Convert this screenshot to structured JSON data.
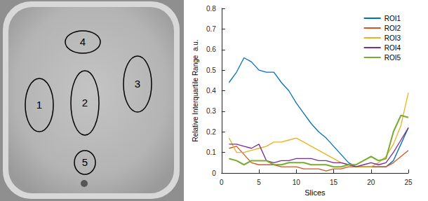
{
  "chart_data": {
    "type": "line",
    "x": [
      1,
      2,
      3,
      4,
      5,
      6,
      7,
      8,
      9,
      10,
      11,
      12,
      13,
      14,
      15,
      16,
      17,
      18,
      19,
      20,
      21,
      22,
      23,
      24,
      25
    ],
    "series": [
      {
        "name": "ROI1",
        "color": "#0072BD",
        "values": [
          0.44,
          0.49,
          0.56,
          0.54,
          0.5,
          0.49,
          0.49,
          0.44,
          0.4,
          0.34,
          0.29,
          0.24,
          0.2,
          0.17,
          0.13,
          0.09,
          0.05,
          0.03,
          0.03,
          0.03,
          0.03,
          0.03,
          0.06,
          0.14,
          0.22
        ]
      },
      {
        "name": "ROI2",
        "color": "#D95319",
        "values": [
          0.12,
          0.13,
          0.09,
          0.05,
          0.04,
          0.04,
          0.04,
          0.03,
          0.03,
          0.03,
          0.02,
          0.02,
          0.02,
          0.01,
          0.02,
          0.02,
          0.03,
          0.03,
          0.03,
          0.03,
          0.03,
          0.03,
          0.05,
          0.08,
          0.11
        ]
      },
      {
        "name": "ROI3",
        "color": "#EDB120",
        "values": [
          0.17,
          0.1,
          0.1,
          0.11,
          0.12,
          0.13,
          0.15,
          0.15,
          0.16,
          0.17,
          0.15,
          0.13,
          0.11,
          0.09,
          0.07,
          0.05,
          0.04,
          0.03,
          0.03,
          0.03,
          0.05,
          0.08,
          0.14,
          0.23,
          0.39
        ]
      },
      {
        "name": "ROI4",
        "color": "#7E2F8E",
        "values": [
          0.14,
          0.14,
          0.13,
          0.12,
          0.14,
          0.06,
          0.05,
          0.06,
          0.06,
          0.07,
          0.07,
          0.07,
          0.06,
          0.06,
          0.05,
          0.05,
          0.04,
          0.03,
          0.04,
          0.05,
          0.04,
          0.05,
          0.1,
          0.16,
          0.22
        ]
      },
      {
        "name": "ROI5",
        "color": "#77AC30",
        "values": [
          0.07,
          0.06,
          0.04,
          0.06,
          0.06,
          0.06,
          0.04,
          0.04,
          0.05,
          0.05,
          0.05,
          0.04,
          0.04,
          0.04,
          0.03,
          0.03,
          0.04,
          0.04,
          0.06,
          0.08,
          0.06,
          0.07,
          0.2,
          0.28,
          0.27
        ]
      }
    ],
    "x_label": "Slices",
    "y_label": "Relative Interquartile Range  a.u.",
    "xlim": [
      0,
      25
    ],
    "xticks": [
      0,
      5,
      10,
      15,
      20,
      25
    ],
    "ylim": [
      0,
      0.8
    ],
    "yticks": [
      0,
      0.1,
      0.2,
      0.3,
      0.4,
      0.5,
      0.6,
      0.7,
      0.8
    ],
    "grid": false,
    "legend": "northeast"
  },
  "image": {
    "roi_labels": [
      "1",
      "2",
      "3",
      "4",
      "5"
    ]
  }
}
